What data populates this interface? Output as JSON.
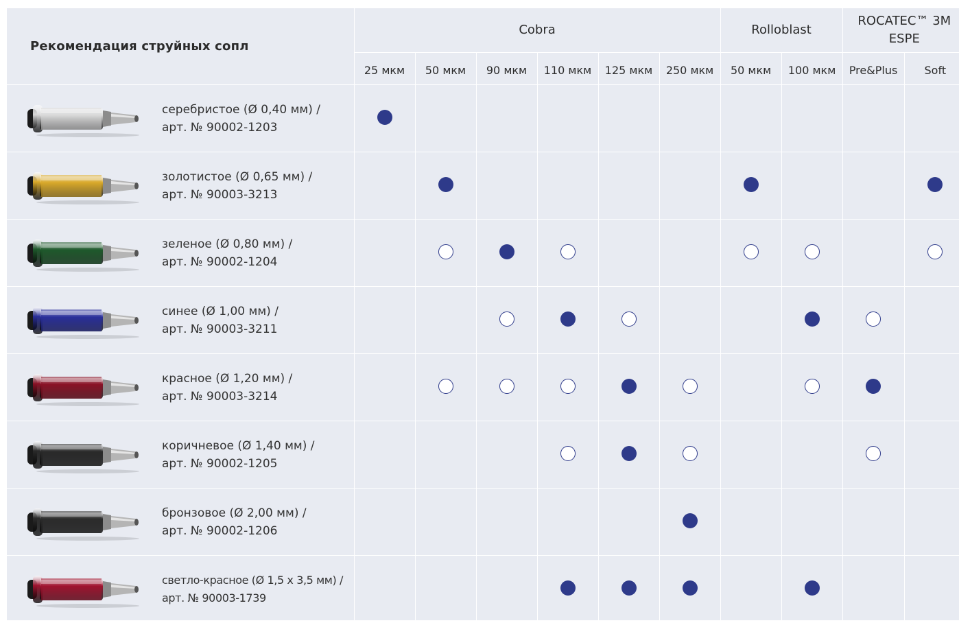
{
  "title": "Рекомендация струйных сопл",
  "groups": [
    {
      "name": "Cobra",
      "span": 6
    },
    {
      "name": "Rolloblast",
      "span": 2
    },
    {
      "name": "ROCATEC™ 3M ESPE",
      "span": 2
    }
  ],
  "columns": [
    "25 мкм",
    "50 мкм",
    "90 мкм",
    "110 мкм",
    "125 мкм",
    "250 мкм",
    "50 мкм",
    "100 мкм",
    "Pre&Plus",
    "Soft"
  ],
  "legend_colors": {
    "filled": "#2e3a8a",
    "cell_bg": "#e8ebf2",
    "grid": "#ffffff"
  },
  "rows": [
    {
      "label_line1": "серебристое (Ø 0,40 мм) /",
      "label_line2": "арт. № 90002-1203",
      "color": "#d8d8d8",
      "marks": [
        "filled",
        "",
        "",
        "",
        "",
        "",
        "",
        "",
        "",
        ""
      ]
    },
    {
      "label_line1": "золотистое (Ø 0,65 мм) /",
      "label_line2": "арт. № 90003-3213",
      "color": "#d9a92a",
      "marks": [
        "",
        "filled",
        "",
        "",
        "",
        "",
        "filled",
        "",
        "",
        "filled"
      ]
    },
    {
      "label_line1": "зеленое (Ø 0,80 мм) /",
      "label_line2": "арт. № 90002-1204",
      "color": "#1f5a2c",
      "marks": [
        "",
        "open",
        "filled",
        "open",
        "",
        "",
        "open",
        "open",
        "",
        "open"
      ]
    },
    {
      "label_line1": "синее (Ø 1,00 мм) /",
      "label_line2": "арт. № 90003-3211",
      "color": "#2a2f9a",
      "marks": [
        "",
        "",
        "open",
        "filled",
        "open",
        "",
        "",
        "filled",
        "open",
        ""
      ]
    },
    {
      "label_line1": "красное (Ø 1,20 мм) /",
      "label_line2": "арт. № 90003-3214",
      "color": "#8a1226",
      "marks": [
        "",
        "open",
        "open",
        "open",
        "filled",
        "open",
        "",
        "open",
        "filled",
        ""
      ]
    },
    {
      "label_line1": "коричневое (Ø 1,40 мм) /",
      "label_line2": "арт. № 90002-1205",
      "color": "#2a2a2a",
      "marks": [
        "",
        "",
        "",
        "open",
        "filled",
        "open",
        "",
        "",
        "open",
        ""
      ]
    },
    {
      "label_line1": "бронзовое (Ø 2,00 мм) /",
      "label_line2": "арт. № 90002-1206",
      "color": "#2c2c2c",
      "marks": [
        "",
        "",
        "",
        "",
        "",
        "filled",
        "",
        "",
        "",
        ""
      ]
    },
    {
      "label_line1": "светло-красное (Ø 1,5 x 3,5 мм) /",
      "label_line2": "арт. № 90003-1739",
      "color": "#a01430",
      "marks": [
        "",
        "",
        "",
        "filled",
        "filled",
        "filled",
        "",
        "filled",
        "",
        ""
      ]
    }
  ]
}
